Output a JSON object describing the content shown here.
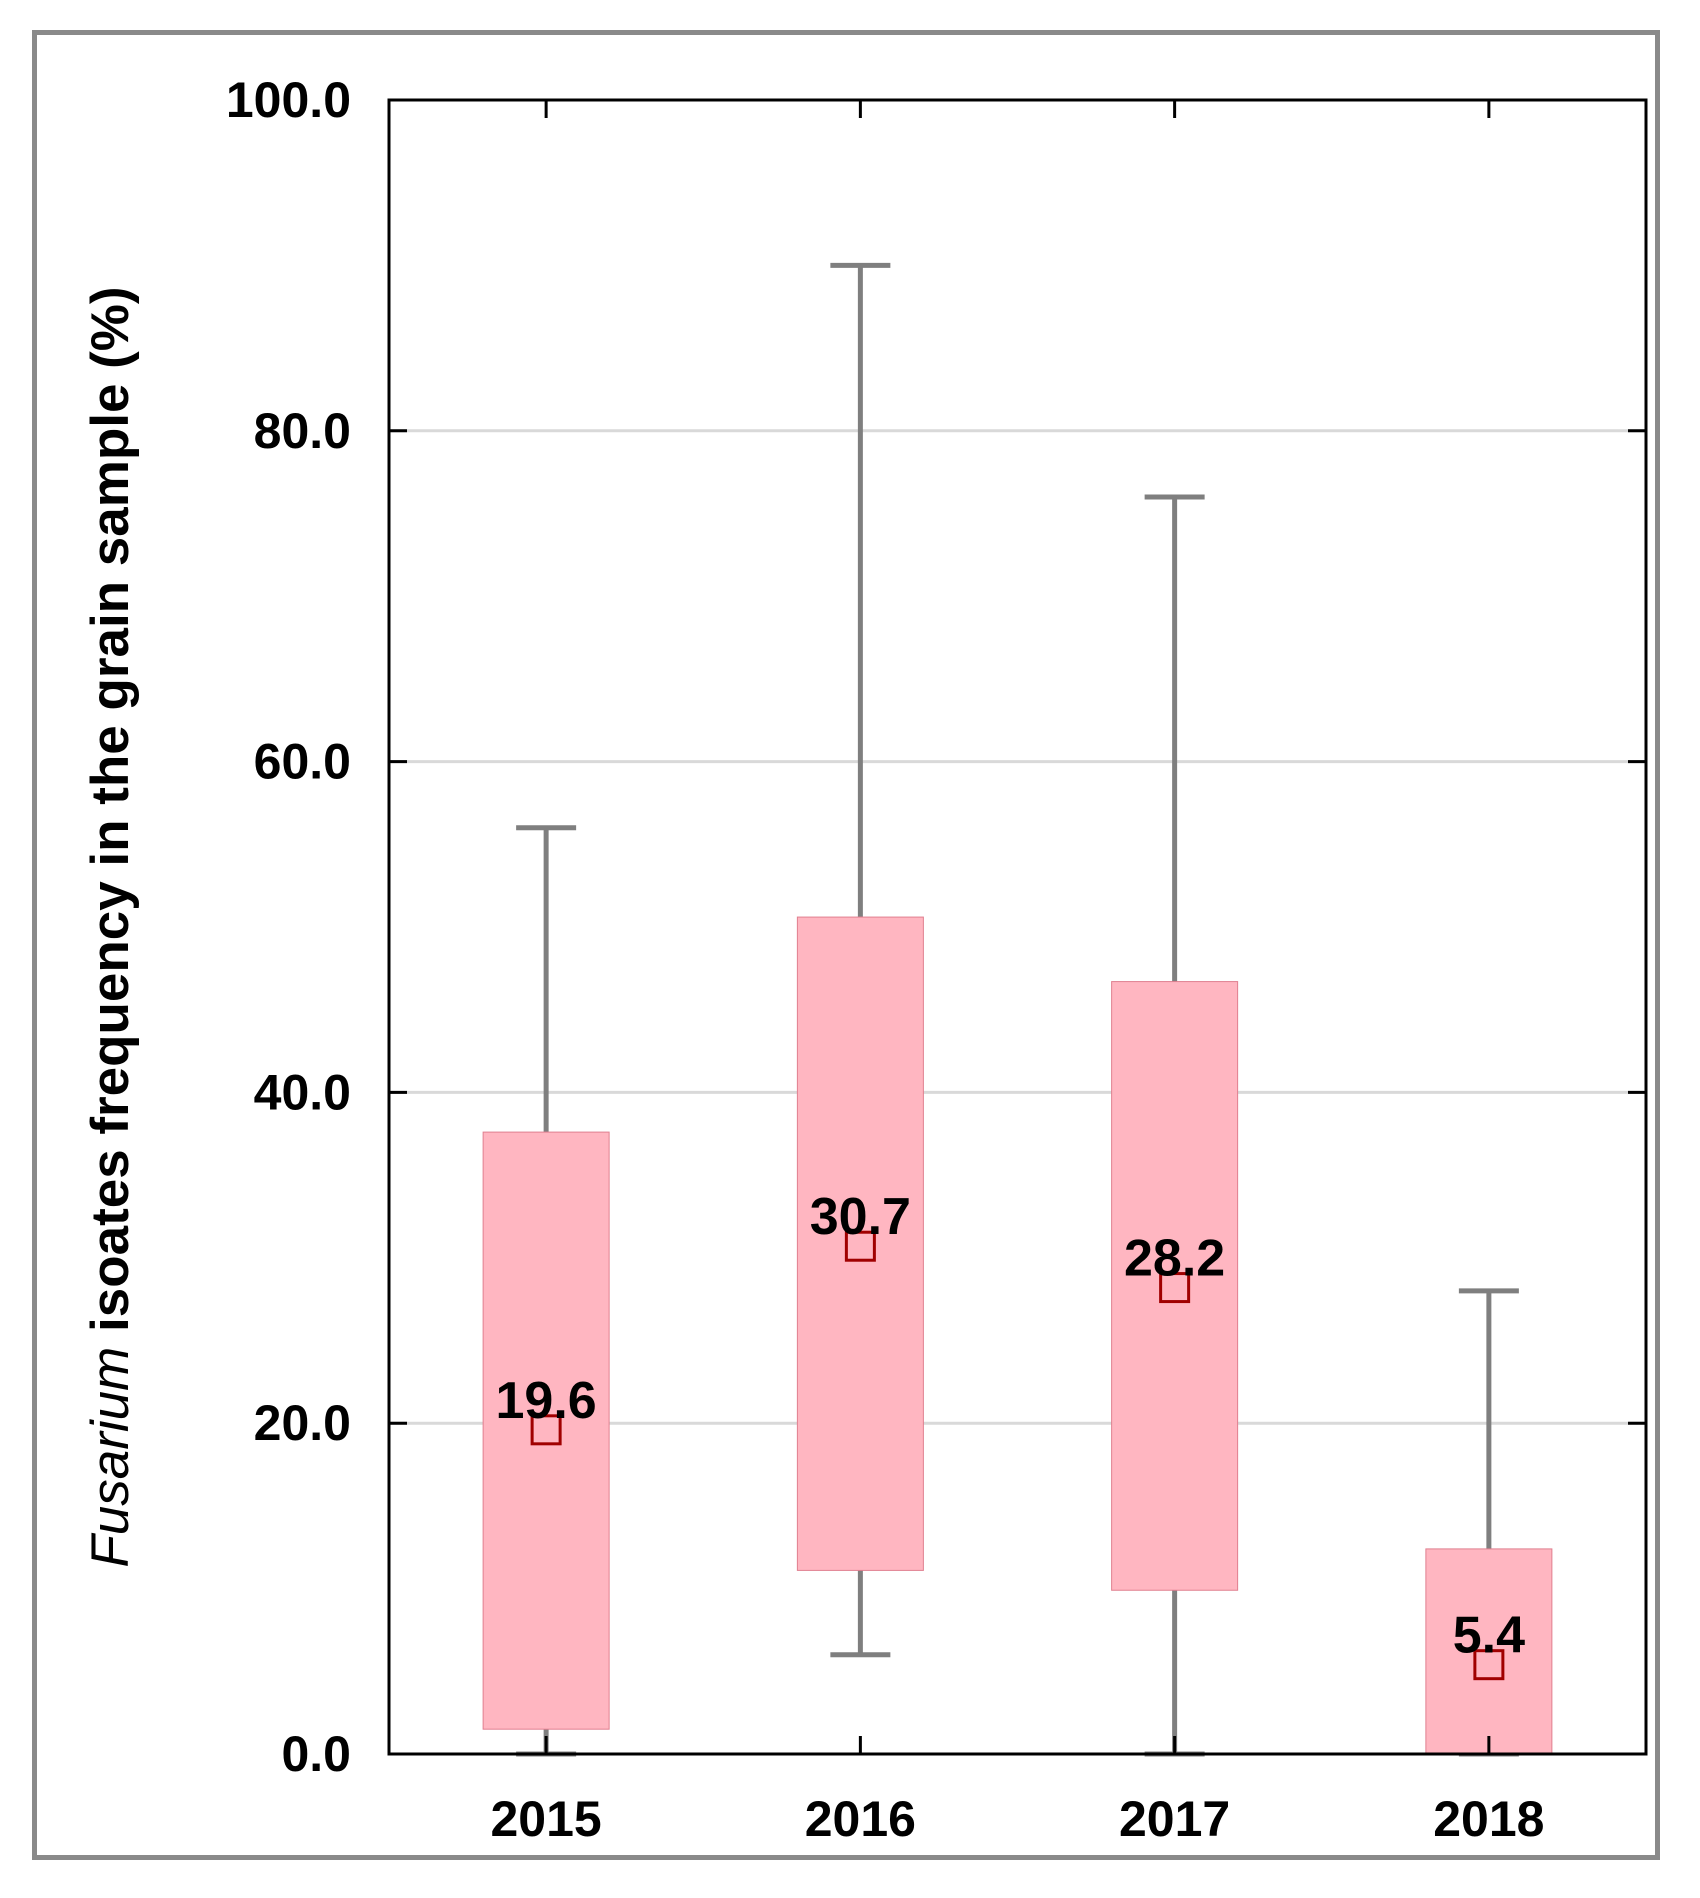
{
  "chart_data": {
    "type": "box",
    "title": "",
    "xlabel": "",
    "ylabel_italic": "Fusarium",
    "ylabel_rest": " isoates frequency in the grain sample (%)",
    "ylim": [
      0,
      100
    ],
    "yticks": [
      0,
      20,
      40,
      60,
      80,
      100
    ],
    "ytick_labels": [
      "0.0",
      "20.0",
      "40.0",
      "60.0",
      "80.0",
      "100.0"
    ],
    "grid": true,
    "categories": [
      "2015",
      "2016",
      "2017",
      "2018"
    ],
    "boxes": [
      {
        "category": "2015",
        "whisker_low": 0.0,
        "q1": 1.5,
        "q3": 37.6,
        "whisker_high": 56.0,
        "mean": 19.6,
        "mean_label": "19.6"
      },
      {
        "category": "2016",
        "whisker_low": 6.0,
        "q1": 11.1,
        "q3": 50.6,
        "whisker_high": 90.0,
        "mean": 30.7,
        "mean_label": "30.7"
      },
      {
        "category": "2017",
        "whisker_low": 0.0,
        "q1": 9.9,
        "q3": 46.7,
        "whisker_high": 76.0,
        "mean": 28.2,
        "mean_label": "28.2"
      },
      {
        "category": "2018",
        "whisker_low": 0.0,
        "q1": 0.0,
        "q3": 12.4,
        "whisker_high": 28.0,
        "mean": 5.4,
        "mean_label": "5.4"
      }
    ],
    "colors": {
      "box_fill": "#ffb6c1",
      "box_stroke": "#e07f8f",
      "whisker": "#7f7f7f",
      "mean_marker": "#a00000",
      "grid": "#d9d9d9",
      "axis": "#000000"
    }
  }
}
